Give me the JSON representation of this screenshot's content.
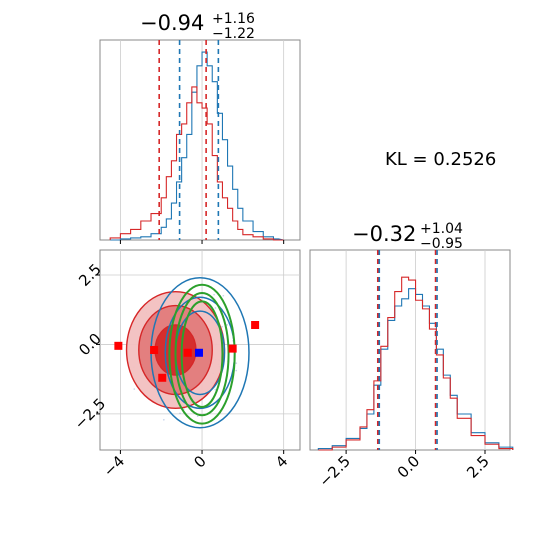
{
  "chart_data": [
    {
      "panel": "marginal-x",
      "type": "histogram",
      "title": {
        "median": "−0.94",
        "plus": "+1.16",
        "minus": "−1.22"
      },
      "xlim": [
        -5,
        4.8
      ],
      "series": [
        {
          "name": "",
          "color": "#1f77b4",
          "bins": [
            -4.5,
            -4,
            -3.5,
            -3,
            -2.5,
            -2,
            -1.75,
            -1.5,
            -1.25,
            -1,
            -0.75,
            -0.5,
            -0.25,
            0,
            0.25,
            0.5,
            0.75,
            1,
            1.25,
            1.5,
            1.75,
            2,
            2.5,
            3,
            3.5
          ],
          "counts": [
            0,
            1,
            2,
            3,
            6,
            12,
            20,
            35,
            55,
            78,
            100,
            140,
            165,
            178,
            165,
            150,
            120,
            95,
            70,
            48,
            30,
            18,
            8,
            3,
            1
          ]
        },
        {
          "name": "",
          "color": "#d62728",
          "bins": [
            -4.5,
            -4,
            -3.5,
            -3,
            -2.5,
            -2,
            -1.75,
            -1.5,
            -1.25,
            -1,
            -0.75,
            -0.5,
            -0.25,
            0,
            0.25,
            0.5,
            0.75,
            1,
            1.25,
            1.5,
            1.75,
            2,
            2.5,
            3,
            3.5
          ],
          "counts": [
            2,
            6,
            10,
            18,
            25,
            40,
            60,
            75,
            100,
            110,
            130,
            145,
            130,
            125,
            110,
            80,
            55,
            40,
            30,
            18,
            10,
            5,
            3,
            1,
            0
          ]
        }
      ],
      "quantile_lines": [
        {
          "color": "#d62728",
          "x": [
            -2.1,
            0.2
          ]
        },
        {
          "color": "#1f77b4",
          "x": [
            -1.1,
            0.8
          ]
        }
      ],
      "xticks": [
        -4,
        0,
        4
      ]
    },
    {
      "panel": "marginal-y",
      "type": "histogram",
      "title": {
        "median": "−0.32",
        "plus": "+1.04",
        "minus": "−0.95"
      },
      "xlim": [
        -3.8,
        3.4
      ],
      "series": [
        {
          "name": "",
          "color": "#1f77b4",
          "bins": [
            -3.5,
            -3,
            -2.5,
            -2,
            -1.75,
            -1.5,
            -1.25,
            -1,
            -0.75,
            -0.5,
            -0.25,
            0,
            0.25,
            0.5,
            0.75,
            1,
            1.25,
            1.5,
            2,
            2.5,
            3
          ],
          "counts": [
            1,
            3,
            8,
            15,
            25,
            45,
            70,
            90,
            100,
            105,
            112,
            108,
            100,
            88,
            70,
            52,
            38,
            25,
            12,
            5,
            2
          ]
        },
        {
          "name": "",
          "color": "#d62728",
          "bins": [
            -3.5,
            -3,
            -2.5,
            -2,
            -1.75,
            -1.5,
            -1.25,
            -1,
            -0.75,
            -0.5,
            -0.25,
            0,
            0.25,
            0.5,
            0.75,
            1,
            1.25,
            1.5,
            2,
            2.5,
            3
          ],
          "counts": [
            0,
            2,
            7,
            16,
            28,
            48,
            72,
            92,
            110,
            120,
            118,
            104,
            98,
            84,
            66,
            50,
            36,
            22,
            10,
            4,
            1
          ]
        }
      ],
      "quantile_lines": [
        {
          "color": "#d62728",
          "x": [
            -1.36,
            0.72
          ]
        },
        {
          "color": "#1f77b4",
          "x": [
            -1.36,
            0.72
          ]
        }
      ],
      "xticks": [
        "−2.5",
        "0.0",
        "2.5"
      ]
    },
    {
      "panel": "joint",
      "type": "contour",
      "xlim": [
        -5,
        4.8
      ],
      "ylim": [
        -3.8,
        3.4
      ],
      "xticks": [
        "−4",
        "0",
        "4"
      ],
      "yticks": [
        "−2.5",
        "0.0",
        "2.5"
      ],
      "red_contours": [
        {
          "cx": -1.3,
          "cy": -0.2,
          "rx": 1.0,
          "ry": 0.9,
          "fill": "#d42a2a"
        },
        {
          "cx": -1.3,
          "cy": -0.2,
          "rx": 1.8,
          "ry": 1.6,
          "fill": "#e17b7b"
        },
        {
          "cx": -1.3,
          "cy": -0.2,
          "rx": 2.4,
          "ry": 2.1,
          "fill": "#f2c0c0"
        }
      ],
      "blue_contours": [
        {
          "cx": -0.1,
          "cy": -0.3,
          "rx": 1.2,
          "ry": 1.5
        },
        {
          "cx": -0.1,
          "cy": -0.3,
          "rx": 1.7,
          "ry": 2.0
        },
        {
          "cx": -0.1,
          "cy": -0.3,
          "rx": 2.4,
          "ry": 2.7
        }
      ],
      "green_contours": [
        {
          "cx": 0.0,
          "cy": -0.35,
          "rx": 1.0,
          "ry": 1.9
        },
        {
          "cx": 0.0,
          "cy": -0.35,
          "rx": 1.3,
          "ry": 2.2
        },
        {
          "cx": 0.0,
          "cy": -0.35,
          "rx": 1.6,
          "ry": 2.5
        }
      ],
      "red_squares": [
        [
          -2.35,
          -0.2
        ],
        [
          -1.95,
          -1.2
        ],
        [
          -0.7,
          -0.3
        ],
        [
          1.5,
          -0.15
        ],
        [
          2.6,
          0.7
        ],
        [
          -4.1,
          -0.05
        ]
      ],
      "blue_squares": [
        [
          -0.15,
          -0.3
        ]
      ]
    }
  ],
  "annotation": "KL = 0.2526",
  "colors": {
    "blue": "#1f77b4",
    "red": "#d62728",
    "green": "#2ca02c",
    "grid": "#cccccc",
    "frame": "#888888"
  }
}
